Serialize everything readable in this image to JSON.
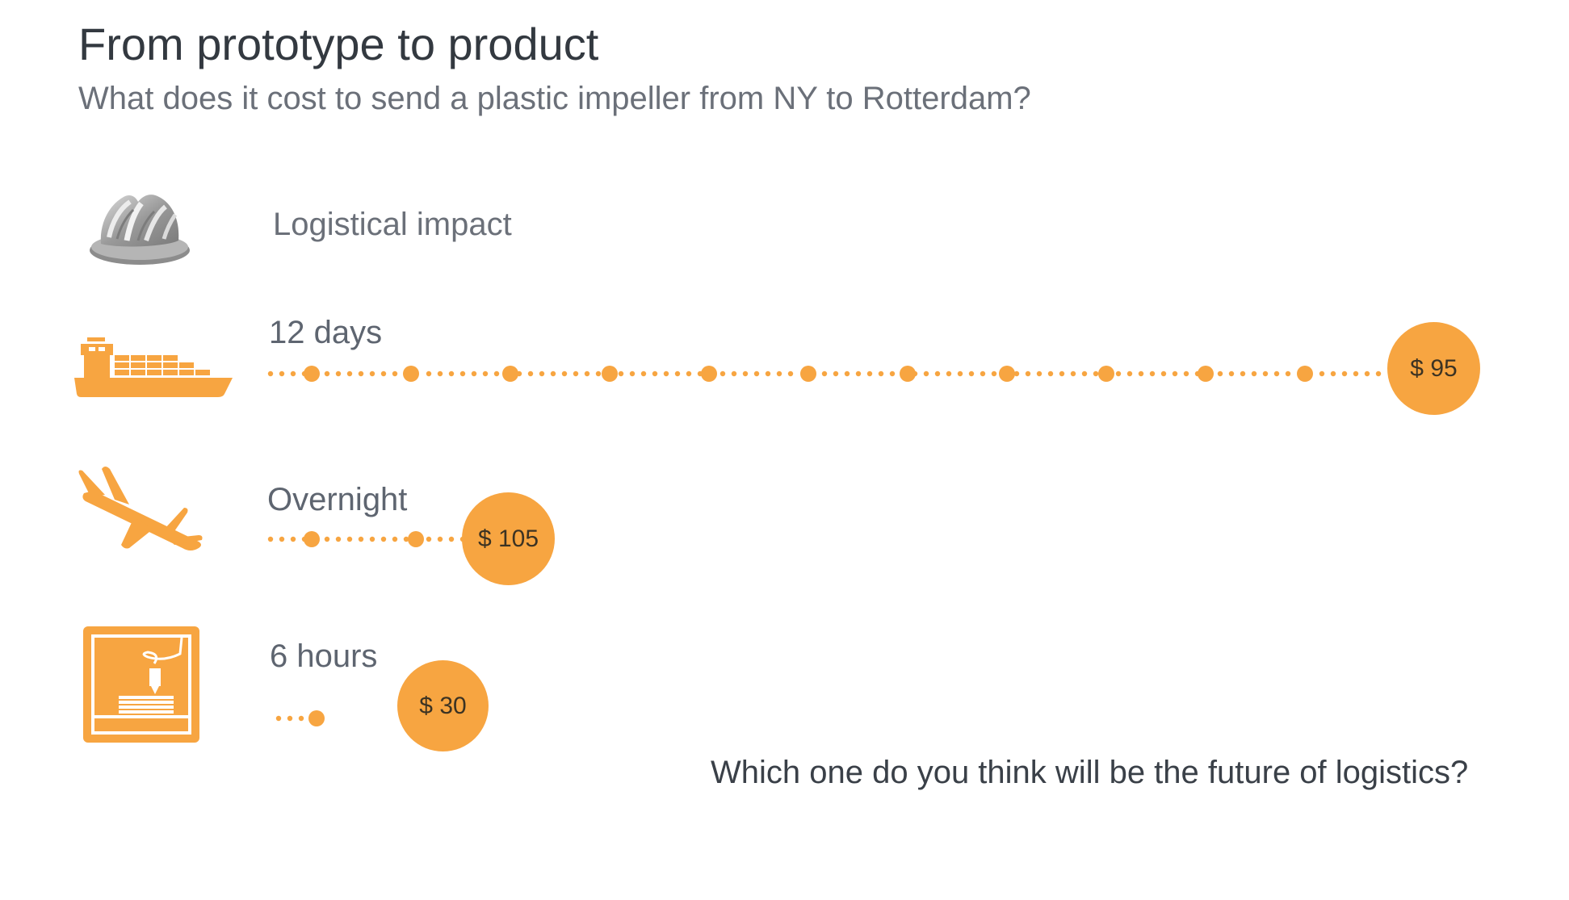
{
  "title": "From prototype to product",
  "subtitle": "What does it cost to send a plastic impeller from NY to Rotterdam?",
  "header": {
    "icon": "impeller-icon",
    "label": "Logistical impact"
  },
  "accent_color": "#f7a541",
  "modes": [
    {
      "id": "ship",
      "icon": "cargo-ship-icon",
      "duration": "12 days",
      "price": "$ 95",
      "big_dots": 11
    },
    {
      "id": "plane",
      "icon": "airplane-icon",
      "duration": "Overnight",
      "price": "$ 105",
      "big_dots": 2
    },
    {
      "id": "printer",
      "icon": "3d-printer-icon",
      "duration": "6 hours",
      "price": "$ 30",
      "big_dots": 1
    }
  ],
  "question": "Which one do you think will be the future of logistics?"
}
